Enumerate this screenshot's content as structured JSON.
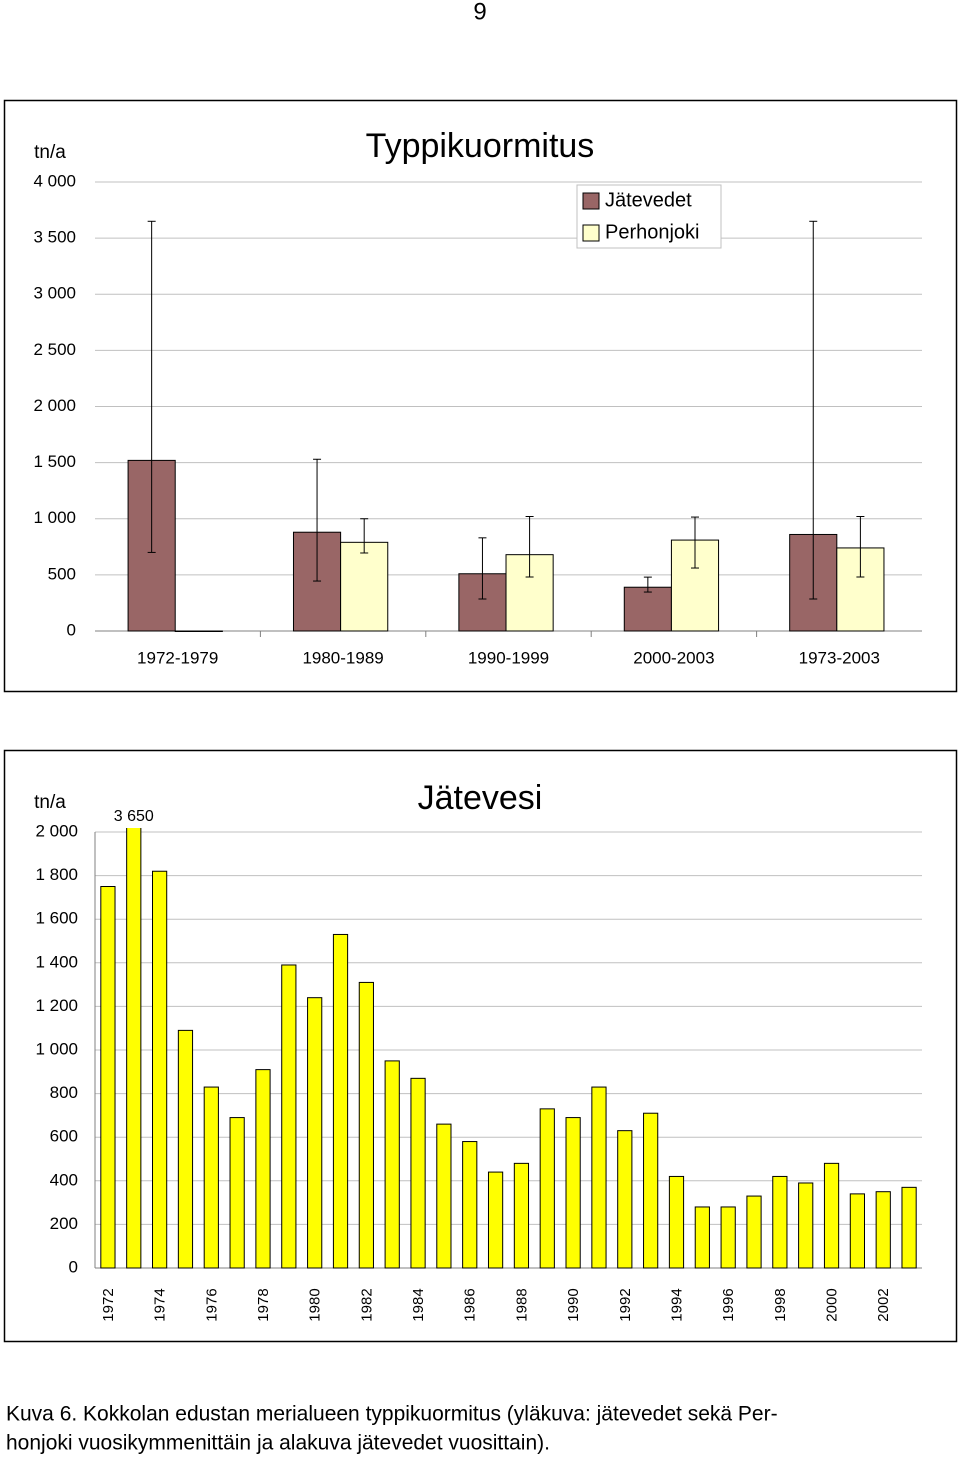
{
  "page_number": "9",
  "chart_data": [
    {
      "type": "bar",
      "title": "Typpikuormitus",
      "y_label": "tn/a",
      "categories": [
        "1972-1979",
        "1980-1989",
        "1990-1999",
        "2000-2003",
        "1973-2003"
      ],
      "series": [
        {
          "name": "Jätevedet",
          "color": "#996666",
          "values": [
            1520,
            880,
            510,
            390,
            860
          ],
          "error_low": [
            700,
            445,
            285,
            347,
            285
          ],
          "error_high": [
            3650,
            1530,
            830,
            480,
            3650
          ]
        },
        {
          "name": "Perhonjoki",
          "color": "#ffffcc",
          "values": [
            0,
            790,
            680,
            810,
            740
          ],
          "error_low": [
            null,
            695,
            481,
            561,
            481
          ],
          "error_high": [
            null,
            1000,
            1020,
            1015,
            1020
          ]
        }
      ],
      "ylim": [
        0,
        4000
      ],
      "yticks": [
        0,
        500,
        {
          "value": 1000,
          "label": "1 000"
        },
        {
          "value": 1500,
          "label": "1 500"
        },
        {
          "value": 2000,
          "label": "2 000"
        },
        {
          "value": 2500,
          "label": "2 500"
        },
        {
          "value": 3000,
          "label": "3 000"
        },
        {
          "value": 3500,
          "label": "3 500"
        },
        {
          "value": 4000,
          "label": "4 000"
        }
      ],
      "grid": true,
      "legend": "top-right"
    },
    {
      "type": "bar",
      "title": "Jätevesi",
      "y_label": "tn/a",
      "color": "#ffff00",
      "categories": [
        "1972",
        null,
        "1974",
        null,
        "1976",
        null,
        "1978",
        null,
        "1980",
        null,
        "1982",
        null,
        "1984",
        null,
        "1986",
        null,
        "1988",
        null,
        "1990",
        null,
        "1992",
        null,
        "1994",
        null,
        "1996",
        null,
        "1998",
        null,
        "2000",
        null,
        "2002",
        null
      ],
      "values": [
        1750,
        3650,
        1820,
        1090,
        830,
        690,
        910,
        1390,
        1240,
        1530,
        1310,
        950,
        870,
        660,
        580,
        440,
        480,
        730,
        690,
        830,
        630,
        710,
        420,
        280,
        280,
        330,
        420,
        390,
        480,
        340,
        350,
        370
      ],
      "value_labels": [
        null,
        "3 650",
        null,
        null,
        null,
        null,
        null,
        null,
        null,
        null,
        null,
        null,
        null,
        null,
        null,
        null,
        null,
        null,
        null,
        null,
        null,
        null,
        null,
        null,
        null,
        null,
        null,
        null,
        null,
        null,
        null,
        null
      ],
      "ylim": [
        0,
        2000
      ],
      "yticks": [
        0,
        200,
        400,
        600,
        800,
        {
          "value": 1000,
          "label": "1 000"
        },
        {
          "value": 1200,
          "label": "1 200"
        },
        {
          "value": 1400,
          "label": "1 400"
        },
        {
          "value": 1600,
          "label": "1 600"
        },
        {
          "value": 1800,
          "label": "1 800"
        },
        {
          "value": 2000,
          "label": "2 000"
        }
      ],
      "grid": true
    }
  ],
  "caption": [
    "Kuva 6.  Kokkolan edustan merialueen typpikuormitus (yläkuva: jätevedet sekä Per-",
    "honjoki vuosikymmenittäin ja alakuva jätevedet vuosittain)."
  ]
}
